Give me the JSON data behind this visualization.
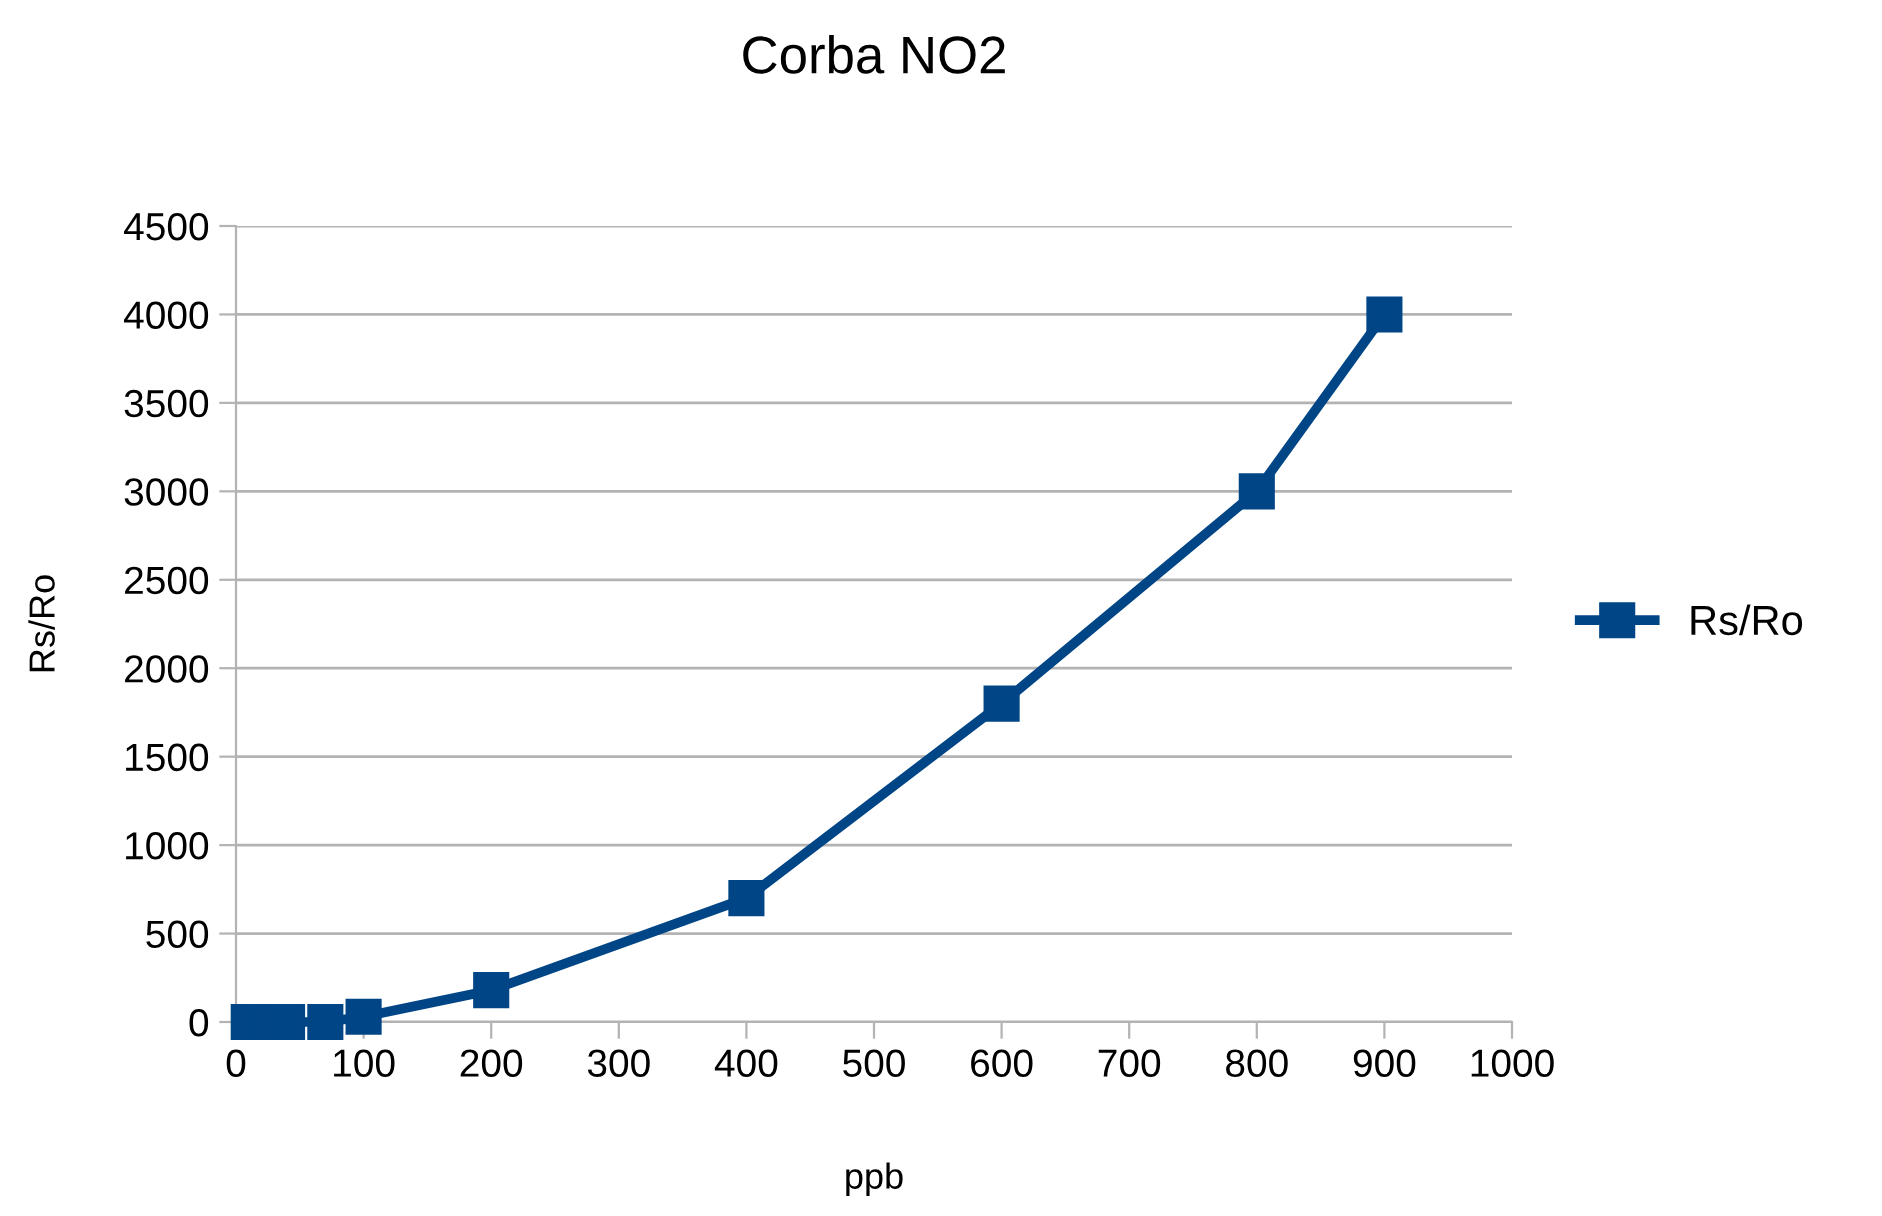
{
  "chart_data": {
    "type": "line",
    "title": "Corba NO2",
    "xlabel": "ppb",
    "ylabel": "Rs/Ro",
    "series": [
      {
        "name": "Rs/Ro",
        "color": "#004586",
        "x": [
          10,
          20,
          30,
          40,
          70,
          100,
          200,
          400,
          600,
          800,
          900
        ],
        "values": [
          0,
          0,
          0,
          0,
          0,
          30,
          180,
          700,
          1800,
          3000,
          4000
        ]
      }
    ],
    "xlim": [
      0,
      1000
    ],
    "xticks": [
      0,
      100,
      200,
      300,
      400,
      500,
      600,
      700,
      800,
      900,
      1000
    ],
    "ylim": [
      0,
      4500
    ],
    "yticks": [
      0,
      500,
      1000,
      1500,
      2000,
      2500,
      3000,
      3500,
      4000,
      4500
    ],
    "grid": "y",
    "legend": "right",
    "marker": "square",
    "line_style": "solid"
  }
}
